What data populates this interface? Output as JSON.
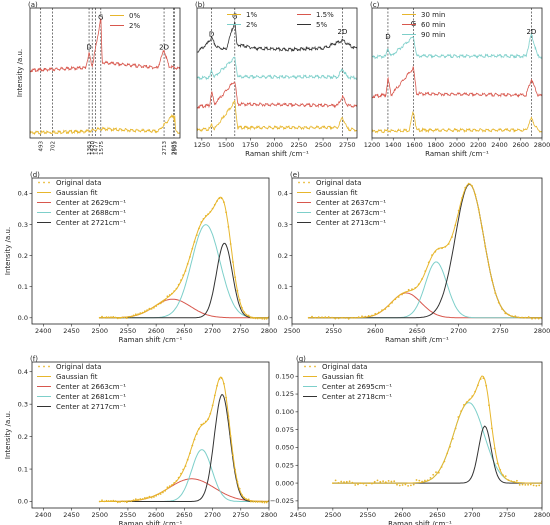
{
  "chart_data": [
    {
      "id": "a",
      "type": "line",
      "panel_label": "(a)",
      "ylabel": "Intensity /a.u.",
      "xlim": [
        300,
        3000
      ],
      "ylim": [
        0,
        10
      ],
      "xticks": [],
      "legend": {
        "placement": "top-right",
        "entries": [
          {
            "name": "0%",
            "color": "#e7b62c"
          },
          {
            "name": "2%",
            "color": "#d8574d"
          }
        ]
      },
      "vlines": [
        {
          "x": 493,
          "label": "493"
        },
        {
          "x": 702,
          "label": "702"
        },
        {
          "x": 1363,
          "label": "1363"
        },
        {
          "x": 1420,
          "label": "1420"
        },
        {
          "x": 1477,
          "label": "1477"
        },
        {
          "x": 1575,
          "label": "1575"
        },
        {
          "x": 2713,
          "label": "2713"
        },
        {
          "x": 2885,
          "label": "2885"
        },
        {
          "x": 2903,
          "label": "2903"
        }
      ],
      "peak_labels": [
        {
          "x": 1363,
          "y": 6.8,
          "label": "D"
        },
        {
          "x": 1575,
          "y": 9.1,
          "label": "G"
        },
        {
          "x": 2713,
          "y": 6.8,
          "label": "2D"
        }
      ],
      "series": [
        {
          "name": "0%",
          "color": "#e7b62c",
          "offset": 0.4,
          "points": [
            [
              300,
              0
            ],
            [
              1300,
              0.1
            ],
            [
              1575,
              0.3
            ],
            [
              2600,
              0.1
            ],
            [
              2885,
              1.4
            ],
            [
              2900,
              0.8
            ],
            [
              2903,
              1.5
            ],
            [
              2920,
              0.1
            ],
            [
              3000,
              0
            ]
          ]
        },
        {
          "name": "2%",
          "color": "#d8574d",
          "offset": 5.2,
          "points": [
            [
              300,
              0
            ],
            [
              1300,
              0.2
            ],
            [
              1363,
              1.3
            ],
            [
              1420,
              0.3
            ],
            [
              1575,
              4.0
            ],
            [
              1600,
              0.6
            ],
            [
              2600,
              0.2
            ],
            [
              2713,
              1.6
            ],
            [
              2800,
              0.3
            ],
            [
              3000,
              0.1
            ]
          ]
        }
      ]
    },
    {
      "id": "b",
      "type": "line",
      "panel_label": "(b)",
      "xlabel": "Raman shift /cm⁻¹",
      "xlim": [
        1200,
        2850
      ],
      "ylim": [
        0,
        10
      ],
      "xticks": [
        1250,
        1500,
        1750,
        2000,
        2250,
        2500,
        2750
      ],
      "legend": {
        "placement": "top",
        "entries": [
          {
            "name": "1%",
            "color": "#e7b62c"
          },
          {
            "name": "1.5%",
            "color": "#d8574d"
          },
          {
            "name": "2%",
            "color": "#7dcfca"
          },
          {
            "name": "5%",
            "color": "#333333"
          }
        ]
      },
      "vlines": [
        {
          "x": 1350
        },
        {
          "x": 1590
        },
        {
          "x": 2700
        }
      ],
      "peak_labels": [
        {
          "x": 1350,
          "y": 7.8,
          "label": "D"
        },
        {
          "x": 1590,
          "y": 9.2,
          "label": "G"
        },
        {
          "x": 2700,
          "y": 8.0,
          "label": "2D"
        }
      ],
      "series": [
        {
          "name": "1%",
          "color": "#e7b62c",
          "offset": 0.6,
          "points": [
            [
              1200,
              0
            ],
            [
              1330,
              0.1
            ],
            [
              1350,
              0.4
            ],
            [
              1380,
              0.1
            ],
            [
              1590,
              2.2
            ],
            [
              1620,
              0.2
            ],
            [
              2650,
              0.2
            ],
            [
              2700,
              1.0
            ],
            [
              2750,
              0.1
            ],
            [
              2850,
              0
            ]
          ]
        },
        {
          "name": "1.5%",
          "color": "#d8574d",
          "offset": 2.4,
          "points": [
            [
              1200,
              0
            ],
            [
              1330,
              0.1
            ],
            [
              1350,
              1.2
            ],
            [
              1380,
              0.2
            ],
            [
              1590,
              2.0
            ],
            [
              1620,
              0.2
            ],
            [
              2650,
              0.1
            ],
            [
              2700,
              0.8
            ],
            [
              2750,
              0.1
            ],
            [
              2850,
              0
            ]
          ]
        },
        {
          "name": "2%",
          "color": "#7dcfca",
          "offset": 4.6,
          "points": [
            [
              1200,
              0
            ],
            [
              1330,
              0.05
            ],
            [
              1350,
              0.6
            ],
            [
              1380,
              0.1
            ],
            [
              1590,
              1.6
            ],
            [
              1620,
              0.1
            ],
            [
              2650,
              0.1
            ],
            [
              2700,
              0.7
            ],
            [
              2750,
              0.1
            ],
            [
              2850,
              0
            ]
          ]
        },
        {
          "name": "5%",
          "color": "#333333",
          "offset": 6.6,
          "points": [
            [
              1200,
              0
            ],
            [
              1300,
              0.6
            ],
            [
              1350,
              1.1
            ],
            [
              1400,
              0.4
            ],
            [
              1500,
              0.2
            ],
            [
              1590,
              2.4
            ],
            [
              1610,
              0.6
            ],
            [
              1800,
              0.3
            ],
            [
              2100,
              0.2
            ],
            [
              2500,
              0.3
            ],
            [
              2700,
              0.9
            ],
            [
              2800,
              0.4
            ],
            [
              2850,
              0.3
            ]
          ]
        }
      ]
    },
    {
      "id": "c",
      "type": "line",
      "panel_label": "(c)",
      "xlabel": "Raman shift /cm⁻¹",
      "xlim": [
        1200,
        2800
      ],
      "ylim": [
        0,
        10
      ],
      "xticks": [
        1200,
        1400,
        1600,
        1800,
        2000,
        2200,
        2400,
        2600,
        2800
      ],
      "legend": {
        "placement": "top-left",
        "entries": [
          {
            "name": "30 min",
            "color": "#e7b62c"
          },
          {
            "name": "60 min",
            "color": "#d8574d"
          },
          {
            "name": "90 min",
            "color": "#7dcfca"
          }
        ]
      },
      "vlines": [
        {
          "x": 1350
        },
        {
          "x": 1590
        },
        {
          "x": 2700
        }
      ],
      "peak_labels": [
        {
          "x": 1350,
          "y": 7.6,
          "label": "D"
        },
        {
          "x": 1590,
          "y": 8.6,
          "label": "G"
        },
        {
          "x": 2700,
          "y": 8.0,
          "label": "2D"
        }
      ],
      "series": [
        {
          "name": "30 min",
          "color": "#e7b62c",
          "offset": 0.5,
          "points": [
            [
              1200,
              0
            ],
            [
              1550,
              0.1
            ],
            [
              1590,
              1.6
            ],
            [
              1620,
              0.1
            ],
            [
              2650,
              0.1
            ],
            [
              2700,
              1.0
            ],
            [
              2760,
              0.1
            ],
            [
              2800,
              0
            ]
          ]
        },
        {
          "name": "60 min",
          "color": "#d8574d",
          "offset": 3.2,
          "points": [
            [
              1200,
              0
            ],
            [
              1330,
              0.1
            ],
            [
              1350,
              1.4
            ],
            [
              1380,
              0.1
            ],
            [
              1590,
              2.2
            ],
            [
              1620,
              0.2
            ],
            [
              2650,
              0.1
            ],
            [
              2700,
              1.3
            ],
            [
              2760,
              0.1
            ],
            [
              2800,
              0
            ]
          ]
        },
        {
          "name": "90 min",
          "color": "#7dcfca",
          "offset": 6.2,
          "points": [
            [
              1200,
              0
            ],
            [
              1330,
              0.1
            ],
            [
              1350,
              0.7
            ],
            [
              1380,
              0.1
            ],
            [
              1590,
              1.6
            ],
            [
              1620,
              0.1
            ],
            [
              2650,
              0.1
            ],
            [
              2700,
              1.8
            ],
            [
              2760,
              0.1
            ],
            [
              2800,
              0
            ]
          ]
        }
      ]
    },
    {
      "id": "d",
      "type": "line",
      "panel_label": "(d)",
      "xlabel": "Raman shift /cm⁻¹",
      "ylabel": "Intensity /a.u.",
      "xlim": [
        2380,
        2800
      ],
      "ylim": [
        -0.02,
        0.45
      ],
      "xticks": [
        2400,
        2450,
        2500,
        2550,
        2600,
        2650,
        2700,
        2750,
        2800
      ],
      "yticks": [
        0.0,
        0.1,
        0.2,
        0.3,
        0.4
      ],
      "fit_range": [
        2500,
        2800
      ],
      "legend": {
        "placement": "top-left",
        "entries": [
          {
            "name": "Original data",
            "color": "#e7b62c",
            "style": "dots"
          },
          {
            "name": "Gaussian fit",
            "color": "#e7b62c",
            "style": "line"
          },
          {
            "name": "Center at 2629cm⁻¹",
            "color": "#d8574d",
            "style": "line"
          },
          {
            "name": "Center at 2688cm⁻¹",
            "color": "#7dcfca",
            "style": "line"
          },
          {
            "name": "Center at 2721cm⁻¹",
            "color": "#333333",
            "style": "line"
          }
        ]
      },
      "components": [
        {
          "center": 2629,
          "amplitude": 0.06,
          "sigma": 32,
          "color": "#d8574d"
        },
        {
          "center": 2688,
          "amplitude": 0.3,
          "sigma": 25,
          "color": "#7dcfca"
        },
        {
          "center": 2721,
          "amplitude": 0.24,
          "sigma": 14,
          "color": "#333333"
        }
      ]
    },
    {
      "id": "e",
      "type": "line",
      "panel_label": "(e)",
      "xlabel": "Raman shift /cm⁻¹",
      "xlim": [
        2500,
        2800
      ],
      "ylim": [
        -0.02,
        0.45
      ],
      "xticks": [
        2500,
        2550,
        2600,
        2650,
        2700,
        2750,
        2800
      ],
      "yticks": [
        0.0,
        0.1,
        0.2,
        0.3,
        0.4
      ],
      "fit_range": [
        2520,
        2800
      ],
      "legend": {
        "placement": "top-left",
        "entries": [
          {
            "name": "Original data",
            "color": "#e7b62c",
            "style": "dots"
          },
          {
            "name": "Gaussian fit",
            "color": "#e7b62c",
            "style": "line"
          },
          {
            "name": "Center at 2637cm⁻¹",
            "color": "#d8574d",
            "style": "line"
          },
          {
            "name": "Center at 2673cm⁻¹",
            "color": "#7dcfca",
            "style": "line"
          },
          {
            "name": "Center at 2713cm⁻¹",
            "color": "#333333",
            "style": "line"
          }
        ]
      },
      "components": [
        {
          "center": 2637,
          "amplitude": 0.08,
          "sigma": 18,
          "color": "#d8574d"
        },
        {
          "center": 2673,
          "amplitude": 0.18,
          "sigma": 13,
          "color": "#7dcfca"
        },
        {
          "center": 2713,
          "amplitude": 0.43,
          "sigma": 17,
          "color": "#333333"
        }
      ]
    },
    {
      "id": "f",
      "type": "line",
      "panel_label": "(f)",
      "xlabel": "Raman shift /cm⁻¹",
      "ylabel": "Intensity /a.u.",
      "xlim": [
        2380,
        2800
      ],
      "ylim": [
        -0.02,
        0.43
      ],
      "xticks": [
        2400,
        2450,
        2500,
        2550,
        2600,
        2650,
        2700,
        2750,
        2800
      ],
      "yticks": [
        0.0,
        0.1,
        0.2,
        0.3,
        0.4
      ],
      "fit_range": [
        2500,
        2800
      ],
      "legend": {
        "placement": "top-left",
        "entries": [
          {
            "name": "Original data",
            "color": "#e7b62c",
            "style": "dots"
          },
          {
            "name": "Gaussian fit",
            "color": "#e7b62c",
            "style": "line"
          },
          {
            "name": "Center at 2663cm⁻¹",
            "color": "#d8574d",
            "style": "line"
          },
          {
            "name": "Center at 2681cm⁻¹",
            "color": "#7dcfca",
            "style": "line"
          },
          {
            "name": "Center at 2717cm⁻¹",
            "color": "#333333",
            "style": "line"
          }
        ]
      },
      "components": [
        {
          "center": 2663,
          "amplitude": 0.07,
          "sigma": 40,
          "color": "#d8574d"
        },
        {
          "center": 2681,
          "amplitude": 0.16,
          "sigma": 18,
          "color": "#7dcfca"
        },
        {
          "center": 2717,
          "amplitude": 0.33,
          "sigma": 14,
          "color": "#333333"
        }
      ]
    },
    {
      "id": "g",
      "type": "line",
      "panel_label": "(g)",
      "xlabel": "Raman shift /cm⁻¹",
      "xlim": [
        2450,
        2800
      ],
      "ylim": [
        -0.035,
        0.17
      ],
      "xticks": [
        2450,
        2500,
        2550,
        2600,
        2650,
        2700,
        2750,
        2800
      ],
      "yticks": [
        -0.025,
        0.0,
        0.025,
        0.05,
        0.075,
        0.1,
        0.125,
        0.15
      ],
      "ytick_labels": [
        "−0.025",
        "0.000",
        "0.025",
        "0.050",
        "0.075",
        "0.100",
        "0.125",
        "0.150"
      ],
      "fit_range": [
        2500,
        2800
      ],
      "legend": {
        "placement": "top-left",
        "entries": [
          {
            "name": "Original data",
            "color": "#e7b62c",
            "style": "dots"
          },
          {
            "name": "Gaussian fit",
            "color": "#e7b62c",
            "style": "line"
          },
          {
            "name": "Center at 2695cm⁻¹",
            "color": "#7dcfca",
            "style": "line"
          },
          {
            "name": "Center at 2718cm⁻¹",
            "color": "#333333",
            "style": "line"
          }
        ]
      },
      "components": [
        {
          "center": 2695,
          "amplitude": 0.113,
          "sigma": 22,
          "color": "#7dcfca"
        },
        {
          "center": 2718,
          "amplitude": 0.08,
          "sigma": 9,
          "color": "#333333"
        }
      ]
    }
  ]
}
